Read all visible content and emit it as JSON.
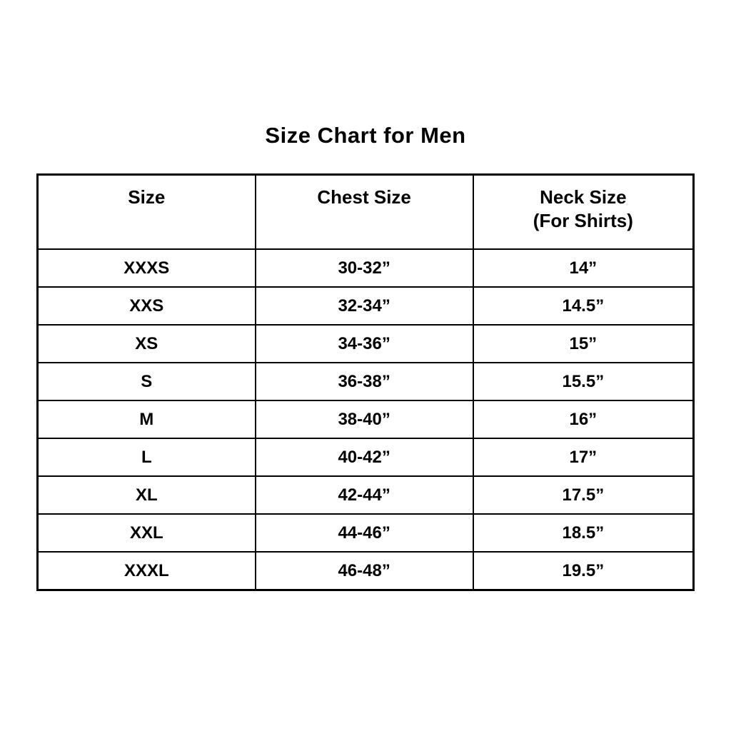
{
  "title": "Size Chart for Men",
  "table": {
    "headers": [
      {
        "line1": "Size",
        "line2": ""
      },
      {
        "line1": "Chest Size",
        "line2": ""
      },
      {
        "line1": "Neck Size",
        "line2": "(For Shirts)"
      }
    ],
    "rows": [
      [
        "XXXS",
        "30-32”",
        "14”"
      ],
      [
        "XXS",
        "32-34”",
        "14.5”"
      ],
      [
        "XS",
        "34-36”",
        "15”"
      ],
      [
        "S",
        "36-38”",
        "15.5”"
      ],
      [
        "M",
        "38-40”",
        "16”"
      ],
      [
        "L",
        "40-42”",
        "17”"
      ],
      [
        "XL",
        "42-44”",
        "17.5”"
      ],
      [
        "XXL",
        "44-46”",
        "18.5”"
      ],
      [
        "XXXL",
        "46-48”",
        "19.5”"
      ]
    ]
  },
  "chart_data": {
    "type": "table",
    "title": "Size Chart for Men",
    "columns": [
      "Size",
      "Chest Size",
      "Neck Size (For Shirts)"
    ],
    "rows": [
      {
        "size": "XXXS",
        "chest_size": "30-32\"",
        "neck_size": "14\""
      },
      {
        "size": "XXS",
        "chest_size": "32-34\"",
        "neck_size": "14.5\""
      },
      {
        "size": "XS",
        "chest_size": "34-36\"",
        "neck_size": "15\""
      },
      {
        "size": "S",
        "chest_size": "36-38\"",
        "neck_size": "15.5\""
      },
      {
        "size": "M",
        "chest_size": "38-40\"",
        "neck_size": "16\""
      },
      {
        "size": "L",
        "chest_size": "40-42\"",
        "neck_size": "17\""
      },
      {
        "size": "XL",
        "chest_size": "42-44\"",
        "neck_size": "17.5\""
      },
      {
        "size": "XXL",
        "chest_size": "44-46\"",
        "neck_size": "18.5\""
      },
      {
        "size": "XXXL",
        "chest_size": "46-48\"",
        "neck_size": "19.5\""
      }
    ]
  },
  "colors": {
    "background": "#ffffff",
    "border": "#000000",
    "text": "#000000"
  }
}
